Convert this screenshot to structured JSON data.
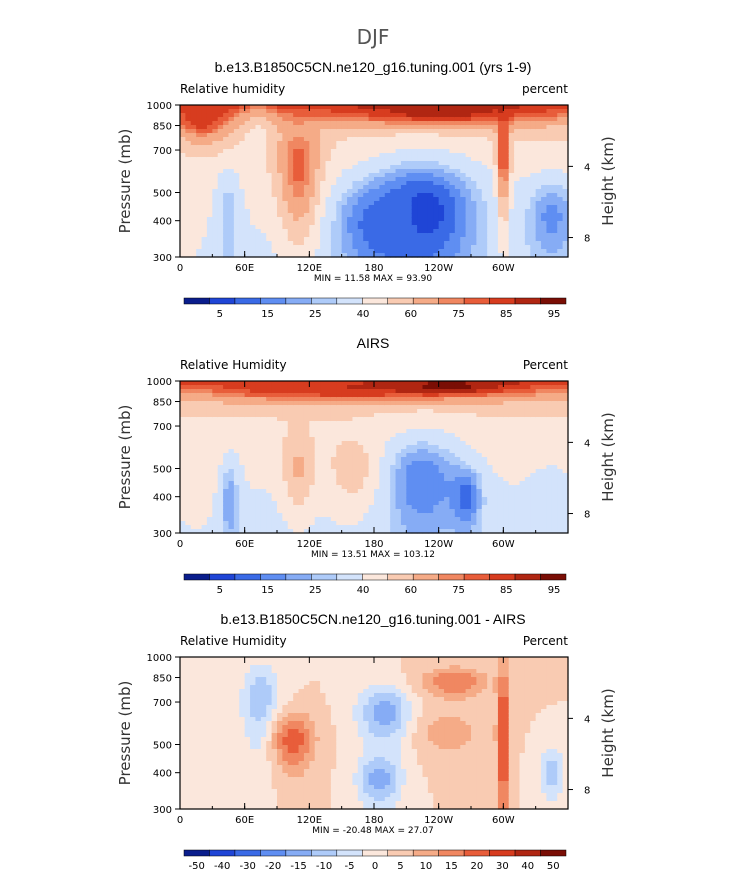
{
  "figure_title": "DJF",
  "chart_data": [
    {
      "type": "heatmap",
      "title": "b.e13.B1850C5CN.ne120_g16.tuning.001 (yrs 1-9)",
      "left_label": "Relative humidity",
      "right_label": "percent",
      "ylabel": "Pressure (mb)",
      "y2label": "Height (km)",
      "x_ticks": [
        "0",
        "60E",
        "120E",
        "180",
        "120W",
        "60W"
      ],
      "y_ticks": [
        "300",
        "400",
        "500",
        "700",
        "850",
        "1000"
      ],
      "y2_ticks": [
        "8",
        "4"
      ],
      "xlim": [
        0,
        360
      ],
      "ylim": [
        1000,
        300
      ],
      "stats": "MIN =   11.58   MAX =   93.90",
      "colorbar_labels": [
        "5",
        "15",
        "25",
        "40",
        "60",
        "75",
        "85",
        "95"
      ],
      "colorbar_colors": [
        "#0a1d8c",
        "#1f45d6",
        "#3a6ae6",
        "#5f8ef2",
        "#86acf5",
        "#aecbf9",
        "#d3e3fb",
        "#fbe7dc",
        "#f9cbb2",
        "#f5ab87",
        "#f08761",
        "#e85d3a",
        "#d73c1f",
        "#b02612",
        "#7a0e05"
      ],
      "colorbar_levels": [
        5,
        10,
        15,
        20,
        25,
        30,
        40,
        50,
        60,
        70,
        75,
        80,
        85,
        90,
        95
      ],
      "topography": [
        [
          25,
          70,
          1000,
          905
        ],
        [
          70,
          80,
          1000,
          850
        ],
        [
          80,
          88,
          1000,
          905
        ],
        [
          120,
          198,
          1000,
          905
        ],
        [
          293,
          315,
          1000,
          905
        ]
      ],
      "features": [
        {
          "lon": 225,
          "p": 430,
          "v": 6,
          "rx": 55,
          "rp": 220
        },
        {
          "lon": 185,
          "p": 390,
          "v": 12,
          "rx": 40,
          "rp": 140
        },
        {
          "lon": 345,
          "p": 410,
          "v": 18,
          "rx": 25,
          "rp": 150
        },
        {
          "lon": 45,
          "p": 400,
          "v": 25,
          "rx": 12,
          "rp": 200
        },
        {
          "lon": 5,
          "p": 500,
          "v": 45,
          "rx": 22,
          "rp": 250
        },
        {
          "lon": 72,
          "p": 700,
          "v": 45,
          "rx": 15,
          "rp": 250
        },
        {
          "lon": 110,
          "p": 620,
          "v": 78,
          "rx": 20,
          "rp": 280
        },
        {
          "lon": 300,
          "p": 700,
          "v": 85,
          "rx": 6,
          "rp": 300
        },
        {
          "lon": 20,
          "p": 900,
          "v": 85,
          "rx": 25,
          "rp": 160
        },
        {
          "lon": 240,
          "p": 950,
          "v": 88,
          "rx": 80,
          "rp": 90
        }
      ]
    },
    {
      "type": "heatmap",
      "title": "AIRS",
      "left_label": "Relative Humidity",
      "right_label": "Percent",
      "ylabel": "Pressure (mb)",
      "y2label": "Height (km)",
      "x_ticks": [
        "0",
        "60E",
        "120E",
        "180",
        "120W",
        "60W"
      ],
      "y_ticks": [
        "300",
        "400",
        "500",
        "700",
        "850",
        "1000"
      ],
      "y2_ticks": [
        "8",
        "4"
      ],
      "xlim": [
        0,
        360
      ],
      "ylim": [
        1000,
        300
      ],
      "stats": "MIN =   13.51   MAX =   103.12",
      "colorbar_labels": [
        "5",
        "15",
        "25",
        "40",
        "60",
        "75",
        "85",
        "95"
      ],
      "colorbar_colors": [
        "#0a1d8c",
        "#1f45d6",
        "#3a6ae6",
        "#5f8ef2",
        "#86acf5",
        "#aecbf9",
        "#d3e3fb",
        "#fbe7dc",
        "#f9cbb2",
        "#f5ab87",
        "#f08761",
        "#e85d3a",
        "#d73c1f",
        "#b02612",
        "#7a0e05"
      ],
      "colorbar_levels": [
        5,
        10,
        15,
        20,
        25,
        30,
        40,
        50,
        60,
        70,
        75,
        80,
        85,
        90,
        95
      ],
      "topography": [
        [
          53,
          62,
          1000,
          895
        ]
      ],
      "features": [
        {
          "lon": 225,
          "p": 450,
          "v": 15,
          "rx": 40,
          "rp": 200
        },
        {
          "lon": 265,
          "p": 400,
          "v": 12,
          "rx": 15,
          "rp": 100
        },
        {
          "lon": 45,
          "p": 400,
          "v": 18,
          "rx": 10,
          "rp": 160
        },
        {
          "lon": 345,
          "p": 350,
          "v": 35,
          "rx": 20,
          "rp": 150
        },
        {
          "lon": 15,
          "p": 600,
          "v": 50,
          "rx": 25,
          "rp": 250
        },
        {
          "lon": 110,
          "p": 500,
          "v": 62,
          "rx": 15,
          "rp": 150
        },
        {
          "lon": 160,
          "p": 500,
          "v": 55,
          "rx": 25,
          "rp": 150
        },
        {
          "lon": 150,
          "p": 940,
          "v": 85,
          "rx": 120,
          "rp": 80
        },
        {
          "lon": 250,
          "p": 960,
          "v": 92,
          "rx": 50,
          "rp": 60
        }
      ]
    },
    {
      "type": "heatmap",
      "title": "b.e13.B1850C5CN.ne120_g16.tuning.001 - AIRS",
      "left_label": "Relative Humidity",
      "right_label": "Percent",
      "ylabel": "Pressure (mb)",
      "y2label": "Height (km)",
      "x_ticks": [
        "0",
        "60E",
        "120E",
        "180",
        "120W",
        "60W"
      ],
      "y_ticks": [
        "300",
        "400",
        "500",
        "700",
        "850",
        "1000"
      ],
      "y2_ticks": [
        "8",
        "4"
      ],
      "xlim": [
        0,
        360
      ],
      "ylim": [
        1000,
        300
      ],
      "stats": "MIN =  -20.48   MAX =   27.07",
      "colorbar_labels": [
        "-50",
        "-40",
        "-30",
        "-20",
        "-15",
        "-10",
        "-5",
        "0",
        "5",
        "10",
        "15",
        "20",
        "30",
        "40",
        "50"
      ],
      "colorbar_colors": [
        "#0a1d8c",
        "#1f45d6",
        "#3a6ae6",
        "#5f8ef2",
        "#86acf5",
        "#aecbf9",
        "#d3e3fb",
        "#fbe7dc",
        "#f9cbb2",
        "#f5ab87",
        "#f08761",
        "#e85d3a",
        "#d73c1f",
        "#b02612",
        "#7a0e05"
      ],
      "colorbar_levels": [
        -50,
        -40,
        -30,
        -20,
        -15,
        -10,
        -5,
        0,
        5,
        10,
        15,
        20,
        30,
        40,
        50
      ],
      "topography": [
        [
          25,
          70,
          1000,
          905
        ],
        [
          70,
          80,
          1000,
          850
        ],
        [
          80,
          88,
          1000,
          905
        ],
        [
          120,
          198,
          1000,
          905
        ],
        [
          293,
          315,
          1000,
          905
        ]
      ],
      "features": [
        {
          "lon": 185,
          "p": 380,
          "v": -18,
          "rx": 20,
          "rp": 80
        },
        {
          "lon": 190,
          "p": 640,
          "v": -18,
          "rx": 25,
          "rp": 150
        },
        {
          "lon": 345,
          "p": 400,
          "v": -12,
          "rx": 12,
          "rp": 90
        },
        {
          "lon": 75,
          "p": 700,
          "v": -14,
          "rx": 18,
          "rp": 250
        },
        {
          "lon": 105,
          "p": 520,
          "v": 18,
          "rx": 20,
          "rp": 120
        },
        {
          "lon": 300,
          "p": 550,
          "v": 22,
          "rx": 6,
          "rp": 380
        },
        {
          "lon": 255,
          "p": 820,
          "v": 15,
          "rx": 30,
          "rp": 100
        },
        {
          "lon": 250,
          "p": 550,
          "v": 8,
          "rx": 30,
          "rp": 100
        }
      ]
    }
  ]
}
